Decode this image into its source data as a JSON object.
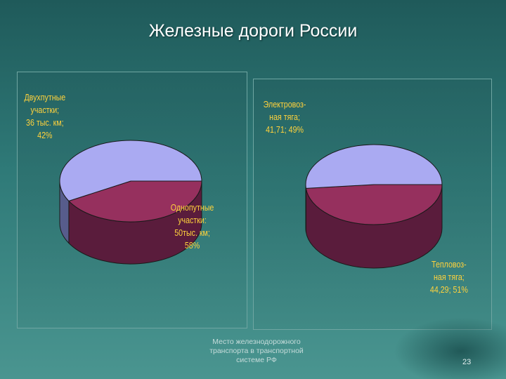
{
  "slide": {
    "title": "Железные дороги России",
    "footer_lines": [
      "Место железнодорожного",
      "транспорта в транспортной",
      "системе РФ"
    ],
    "page_number": "23"
  },
  "colors": {
    "crimson_top": "#96305e",
    "crimson_side": "#5a1c3c",
    "lavender_top": "#aaaaf2",
    "lavender_side": "#575c8c",
    "outline": "#1a1a1a",
    "label_text": "#ffd23c"
  },
  "chart_data": [
    {
      "type": "pie",
      "three_d": true,
      "slices": [
        {
          "label_lines": [
            "Двухпутные",
            "участки;",
            "36 тыс. км;",
            "42%"
          ],
          "value": 36,
          "percent": 42,
          "color": "#96305e"
        },
        {
          "label_lines": [
            "Однопутные",
            "участки:",
            "50тыс. км;",
            "58%"
          ],
          "value": 50,
          "percent": 58,
          "color": "#aaaaf2"
        }
      ]
    },
    {
      "type": "pie",
      "three_d": true,
      "slices": [
        {
          "label_lines": [
            "Электровоз-",
            "ная тяга;",
            "41,71; 49%"
          ],
          "value": 41.71,
          "percent": 49,
          "color": "#96305e"
        },
        {
          "label_lines": [
            "Тепловоз-",
            "ная тяга;",
            "44,29; 51%"
          ],
          "value": 44.29,
          "percent": 51,
          "color": "#aaaaf2"
        }
      ]
    }
  ]
}
